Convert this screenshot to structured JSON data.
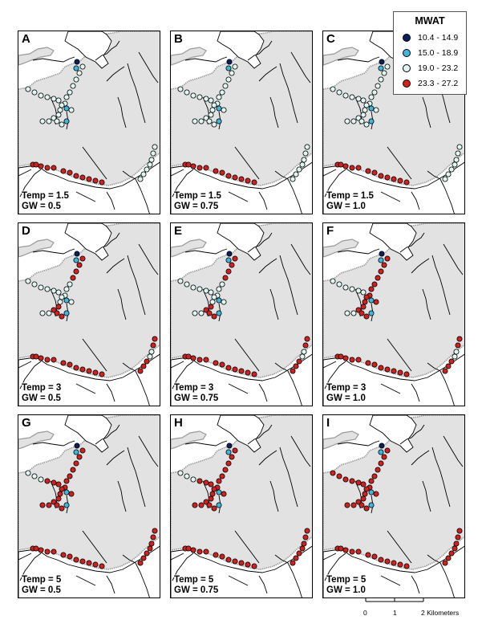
{
  "colors": {
    "land_fill": "#e2e2e2",
    "land_edge": "#9a9a9a",
    "stream": "#000000",
    "class_colors": [
      "#0d1f5c",
      "#3fb6dc",
      "#dff6f2",
      "#d2201f"
    ]
  },
  "legend": {
    "title": "MWAT",
    "classes": [
      {
        "label": "10.4 - 14.9",
        "color": "#0d1f5c"
      },
      {
        "label": "15.0 - 18.9",
        "color": "#3fb6dc"
      },
      {
        "label": "19.0 - 23.2",
        "color": "#dff6f2"
      },
      {
        "label": "23.3 - 27.2",
        "color": "#d2201f"
      }
    ]
  },
  "scalebar": {
    "ticks": [
      "0",
      "1",
      "2 Kilometers"
    ]
  },
  "panels": [
    {
      "letter": "A",
      "temp_label": "Temp = 1.5",
      "gw_label": "GW = 0.5",
      "temp": 1.5,
      "gw": 0.5
    },
    {
      "letter": "B",
      "temp_label": "Temp = 1.5",
      "gw_label": "GW = 0.75",
      "temp": 1.5,
      "gw": 0.75
    },
    {
      "letter": "C",
      "temp_label": "Temp = 1.5",
      "gw_label": "GW = 1.0",
      "temp": 1.5,
      "gw": 1.0
    },
    {
      "letter": "D",
      "temp_label": "Temp = 3",
      "gw_label": "GW = 0.5",
      "temp": 3,
      "gw": 0.5
    },
    {
      "letter": "E",
      "temp_label": "Temp = 3",
      "gw_label": "GW = 0.75",
      "temp": 3,
      "gw": 0.75
    },
    {
      "letter": "F",
      "temp_label": "Temp = 3",
      "gw_label": "GW = 1.0",
      "temp": 3,
      "gw": 1.0
    },
    {
      "letter": "G",
      "temp_label": "Temp = 5",
      "gw_label": "GW = 0.5",
      "temp": 5,
      "gw": 0.5
    },
    {
      "letter": "H",
      "temp_label": "Temp = 5",
      "gw_label": "GW = 0.75",
      "temp": 5,
      "gw": 0.75
    },
    {
      "letter": "I",
      "temp_label": "Temp = 5",
      "gw_label": "GW = 1.0",
      "temp": 5,
      "gw": 1.0
    }
  ]
}
